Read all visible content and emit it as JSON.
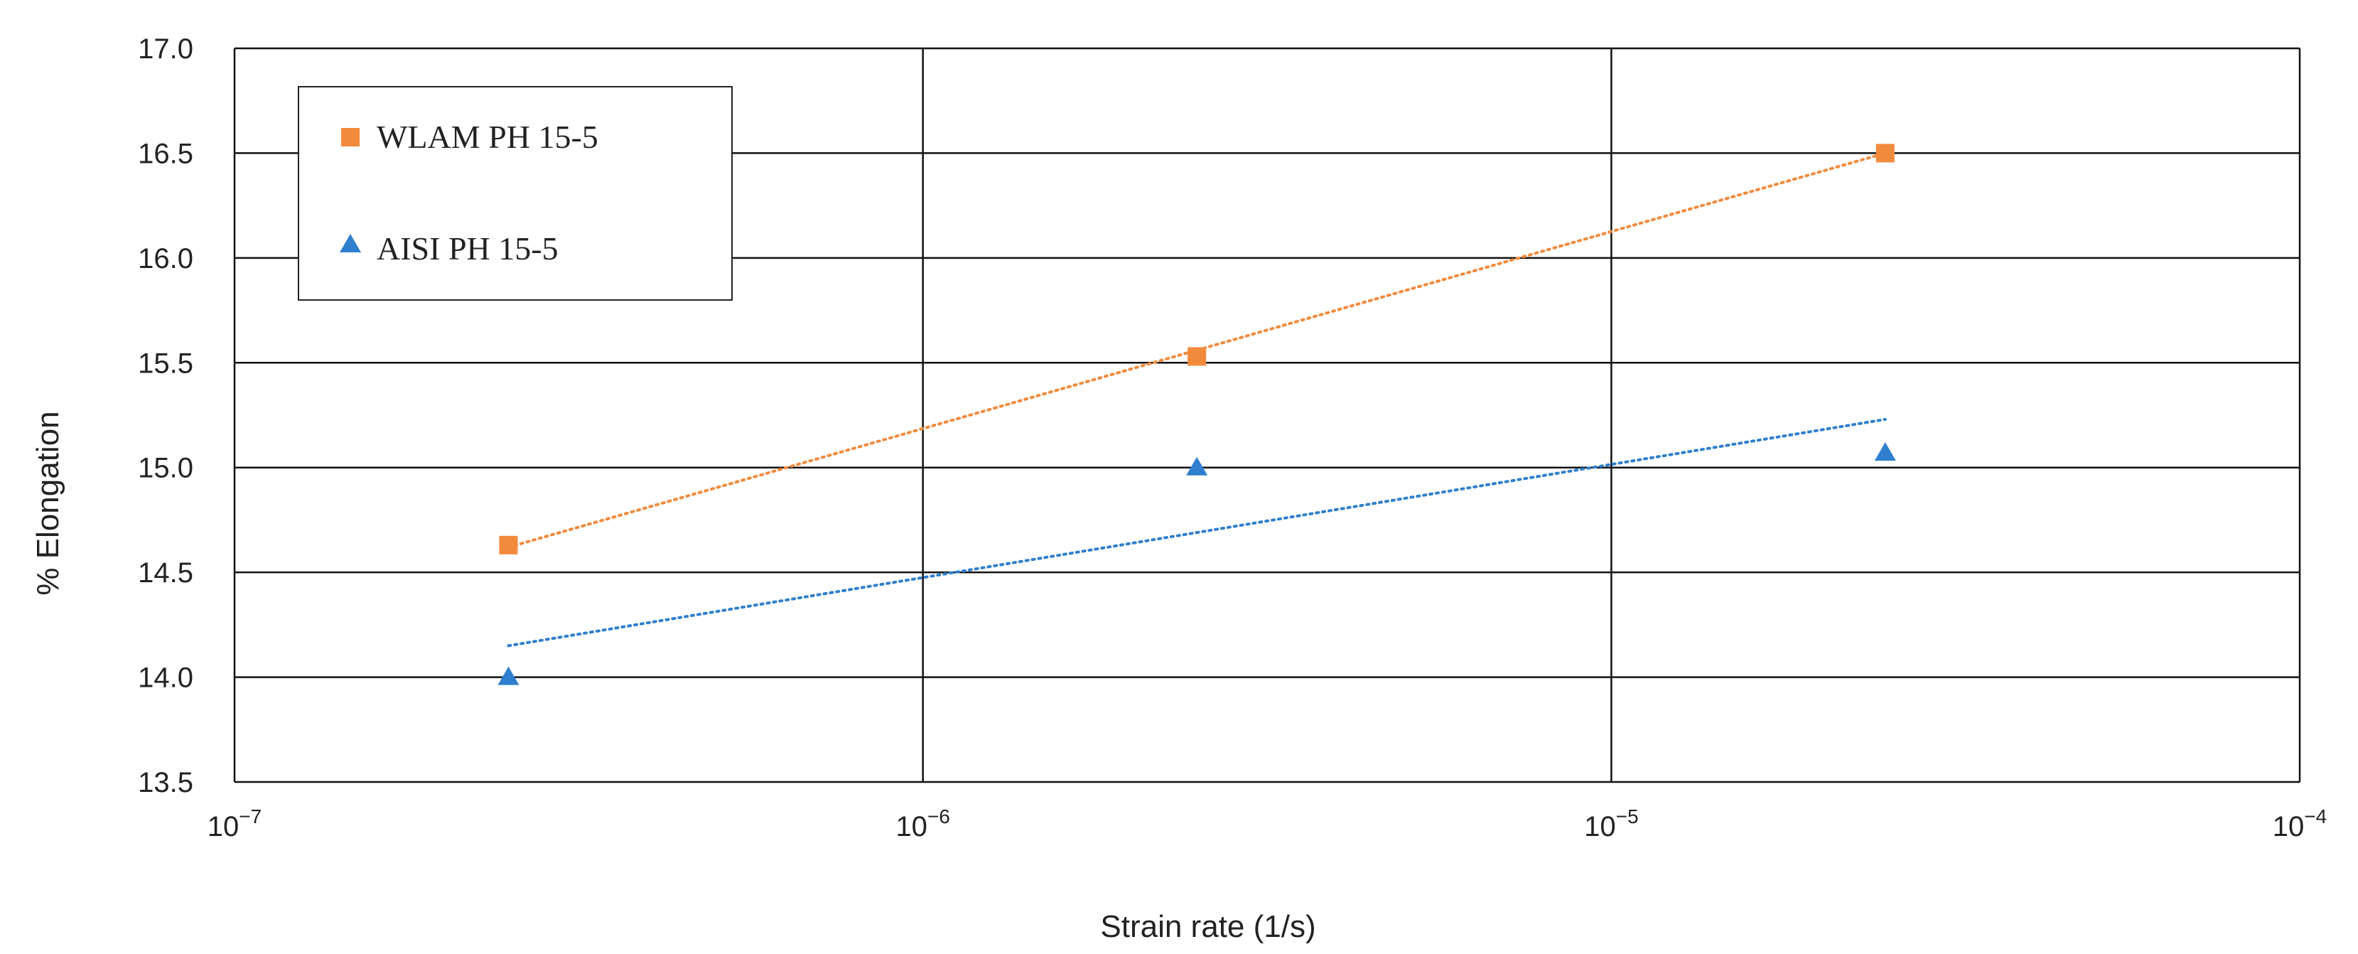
{
  "chart_data": {
    "type": "scatter",
    "xlabel": "Strain rate (1/s)",
    "ylabel": "% Elongation",
    "x_scale": "log",
    "xlim": [
      1e-07,
      0.0001
    ],
    "ylim": [
      13.5,
      17.0
    ],
    "x_ticks": [
      {
        "value": 1e-07,
        "base": "10",
        "exp": "−7"
      },
      {
        "value": 1e-06,
        "base": "10",
        "exp": "−6"
      },
      {
        "value": 1e-05,
        "base": "10",
        "exp": "−5"
      },
      {
        "value": 0.0001,
        "base": "10",
        "exp": "−4"
      }
    ],
    "y_ticks": [
      "13.5",
      "14.0",
      "14.5",
      "15.0",
      "15.5",
      "16.0",
      "16.5",
      "17.0"
    ],
    "grid": true,
    "legend_position": "top-left",
    "series": [
      {
        "name": "WLAM PH 15-5",
        "color": "#f28a3c",
        "marker": "square",
        "x": [
          2.5e-07,
          2.5e-06,
          2.5e-05
        ],
        "y": [
          14.63,
          15.53,
          16.5
        ],
        "trendline": {
          "x": [
            2.5e-07,
            2.5e-05
          ],
          "y": [
            14.62,
            16.5
          ]
        }
      },
      {
        "name": "AISI PH 15-5",
        "color": "#2f7fce",
        "marker": "triangle",
        "x": [
          2.5e-07,
          2.5e-06,
          2.5e-05
        ],
        "y": [
          14.0,
          15.0,
          15.07
        ],
        "trendline": {
          "x": [
            2.5e-07,
            2.5e-05
          ],
          "y": [
            14.15,
            15.23
          ]
        }
      }
    ]
  }
}
